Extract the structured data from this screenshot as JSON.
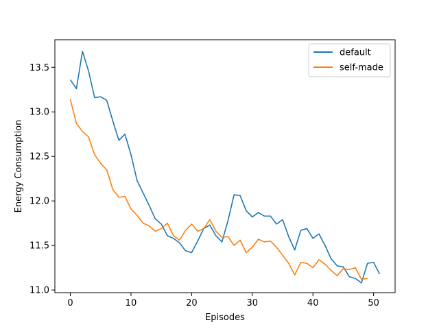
{
  "chart_data": {
    "type": "line",
    "xlabel": "Episodes",
    "ylabel": "Energy Consumption",
    "xlim": [
      -2.55,
      53.55
    ],
    "ylim": [
      10.97,
      13.81
    ],
    "xticks": [
      0,
      10,
      20,
      30,
      40,
      50
    ],
    "xtick_labels": [
      "0",
      "10",
      "20",
      "30",
      "40",
      "50"
    ],
    "yticks": [
      11.0,
      11.5,
      12.0,
      12.5,
      13.0,
      13.5
    ],
    "ytick_labels": [
      "11.0",
      "11.5",
      "12.0",
      "12.5",
      "13.0",
      "13.5"
    ],
    "grid": false,
    "legend_position": "top-right",
    "series": [
      {
        "name": "default",
        "color": "#1f77b4",
        "x": [
          0,
          1,
          2,
          3,
          4,
          5,
          6,
          7,
          8,
          9,
          10,
          11,
          12,
          13,
          14,
          15,
          16,
          17,
          18,
          19,
          20,
          21,
          22,
          23,
          24,
          25,
          26,
          27,
          28,
          29,
          30,
          31,
          32,
          33,
          34,
          35,
          36,
          37,
          38,
          39,
          40,
          41,
          42,
          43,
          44,
          45,
          46,
          47,
          48,
          49,
          50,
          51
        ],
        "values": [
          13.36,
          13.26,
          13.68,
          13.46,
          13.16,
          13.17,
          13.13,
          12.9,
          12.68,
          12.75,
          12.52,
          12.23,
          12.09,
          11.95,
          11.8,
          11.74,
          11.61,
          11.58,
          11.53,
          11.44,
          11.42,
          11.55,
          11.69,
          11.73,
          11.61,
          11.54,
          11.78,
          12.07,
          12.06,
          11.89,
          11.82,
          11.87,
          11.83,
          11.83,
          11.74,
          11.79,
          11.6,
          11.45,
          11.67,
          11.69,
          11.58,
          11.63,
          11.5,
          11.35,
          11.27,
          11.26,
          11.15,
          11.13,
          11.08,
          11.3,
          11.31,
          11.18
        ]
      },
      {
        "name": "self-made",
        "color": "#ff7f0e",
        "x": [
          0,
          1,
          2,
          3,
          4,
          5,
          6,
          7,
          8,
          9,
          10,
          11,
          12,
          13,
          14,
          15,
          16,
          17,
          18,
          19,
          20,
          21,
          22,
          23,
          24,
          25,
          26,
          27,
          28,
          29,
          30,
          31,
          32,
          33,
          34,
          35,
          36,
          37,
          38,
          39,
          40,
          41,
          42,
          43,
          44,
          45,
          46,
          47,
          48,
          49
        ],
        "values": [
          13.14,
          12.87,
          12.78,
          12.72,
          12.52,
          12.42,
          12.35,
          12.13,
          12.04,
          12.05,
          11.91,
          11.84,
          11.75,
          11.72,
          11.66,
          11.69,
          11.75,
          11.61,
          11.56,
          11.67,
          11.74,
          11.66,
          11.69,
          11.79,
          11.66,
          11.59,
          11.6,
          11.5,
          11.56,
          11.42,
          11.48,
          11.57,
          11.54,
          11.55,
          11.48,
          11.39,
          11.3,
          11.17,
          11.31,
          11.3,
          11.25,
          11.34,
          11.29,
          11.22,
          11.16,
          11.24,
          11.23,
          11.25,
          11.12,
          11.13
        ]
      }
    ]
  }
}
